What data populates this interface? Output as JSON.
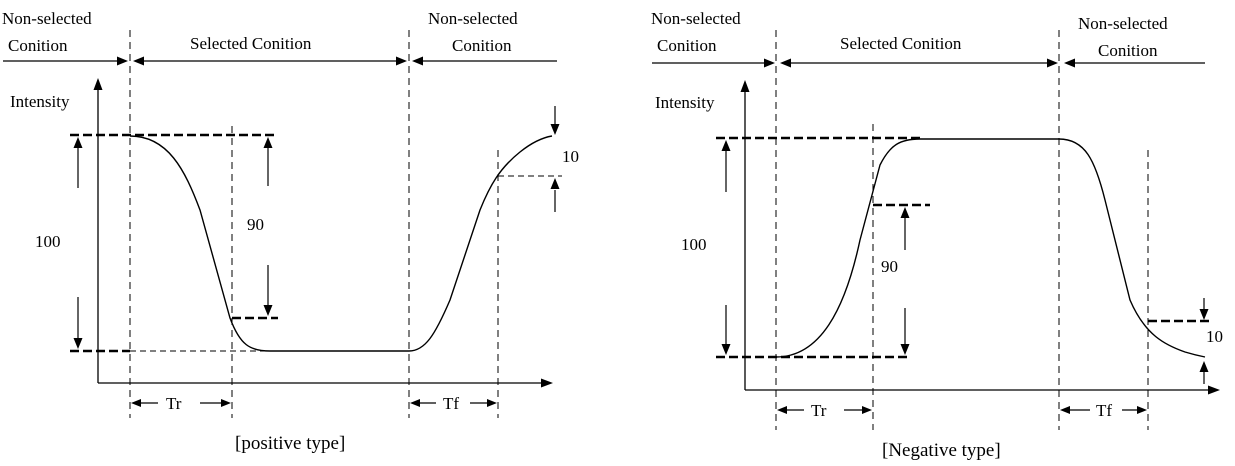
{
  "diagrams": [
    {
      "nonselected_left_line1": "Non-selected",
      "nonselected_left_line2": "Conition",
      "selected": "Selected Conition",
      "nonselected_right_line1": "Non-selected",
      "nonselected_right_line2": "Conition",
      "intensity": "Intensity",
      "label_100": "100",
      "label_90": "90",
      "label_10": "10",
      "tr": "Tr",
      "tf": "Tf",
      "caption": "[positive type]"
    },
    {
      "nonselected_left_line1": "Non-selected",
      "nonselected_left_line2": "Conition",
      "selected": "Selected Conition",
      "nonselected_right_line1": "Non-selected",
      "nonselected_right_line2": "Conition",
      "intensity": "Intensity",
      "label_100": "100",
      "label_90": "90",
      "label_10": "10",
      "tr": "Tr",
      "tf": "Tf",
      "caption": "[Negative type]"
    }
  ]
}
